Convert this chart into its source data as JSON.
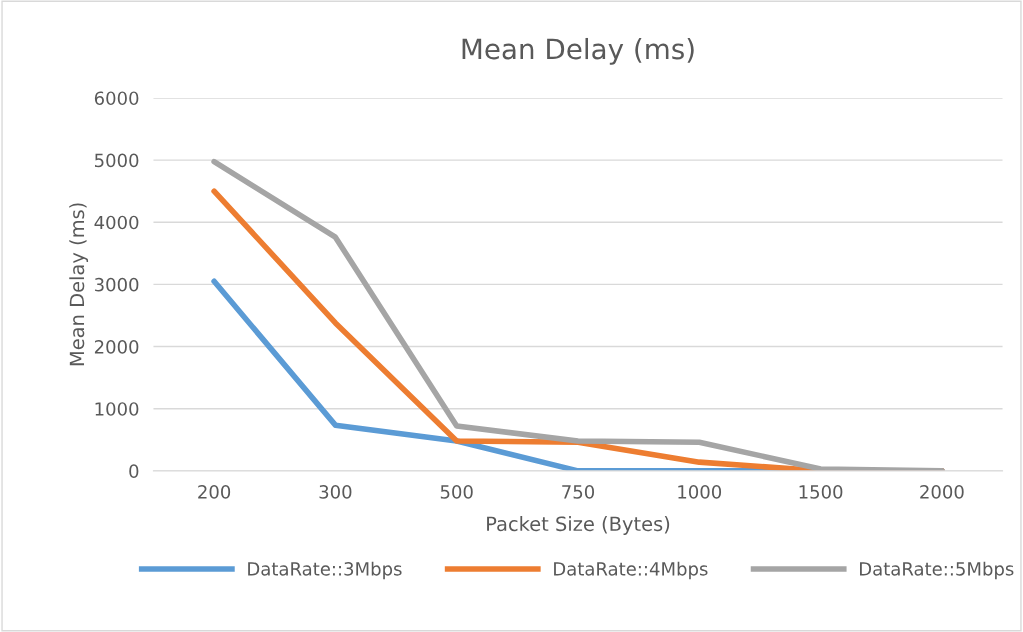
{
  "chart_data": {
    "type": "line",
    "title": "Mean Delay (ms)",
    "xlabel": "Packet Size (Bytes)",
    "ylabel": "Mean Delay (ms)",
    "categories": [
      "200",
      "300",
      "500",
      "750",
      "1000",
      "1500",
      "2000"
    ],
    "series": [
      {
        "name": "DataRate::3Mbps",
        "color": "#5b9bd5",
        "values": [
          3050,
          735,
          480,
          0,
          0,
          0,
          0
        ]
      },
      {
        "name": "DataRate::4Mbps",
        "color": "#ed7d31",
        "values": [
          4500,
          2380,
          480,
          460,
          140,
          0,
          0
        ]
      },
      {
        "name": "DataRate::5Mbps",
        "color": "#a5a5a5",
        "values": [
          4975,
          3760,
          720,
          480,
          460,
          30,
          0
        ]
      }
    ],
    "ylim": [
      0,
      6000
    ],
    "yticks": [
      0,
      1000,
      2000,
      3000,
      4000,
      5000,
      6000
    ],
    "grid": "y",
    "legend": "bottom",
    "marker": "none",
    "line_style": "solid"
  }
}
